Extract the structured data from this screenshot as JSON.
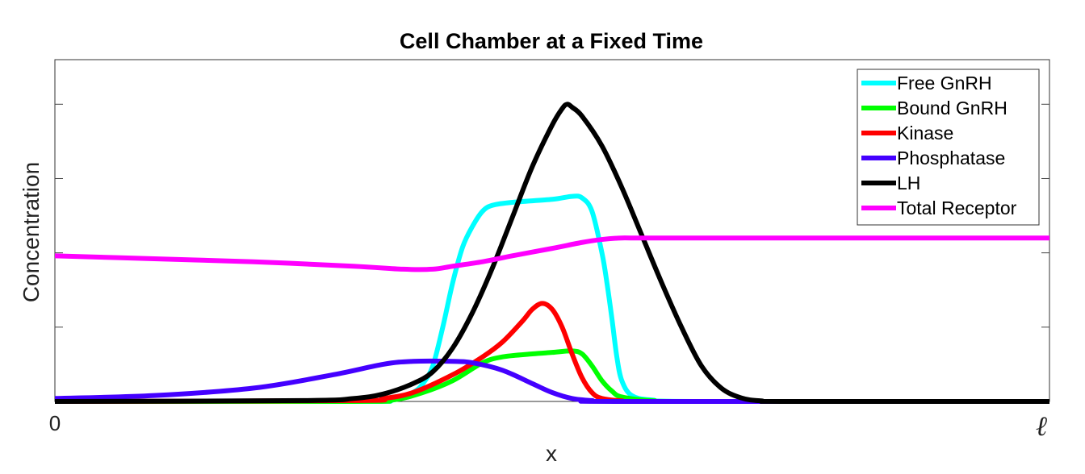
{
  "chart_data": {
    "type": "line",
    "title": "Cell Chamber at a Fixed Time",
    "xlabel": "x",
    "ylabel": "Concentration",
    "x_tick_labels": [
      "0",
      "ℓ"
    ],
    "xlim": [
      0,
      1
    ],
    "ylim": [
      0,
      1.15
    ],
    "y_tick_values": [
      0,
      0.25,
      0.5,
      0.75,
      1.0
    ],
    "grid": false,
    "legend_position": "top-right",
    "series": [
      {
        "name": "Free GnRH",
        "color": "#00ffff",
        "points": [
          [
            0,
            0
          ],
          [
            0.3,
            0
          ],
          [
            0.34,
            0.005
          ],
          [
            0.36,
            0.03
          ],
          [
            0.37,
            0.06
          ],
          [
            0.38,
            0.12
          ],
          [
            0.39,
            0.25
          ],
          [
            0.4,
            0.4
          ],
          [
            0.41,
            0.52
          ],
          [
            0.42,
            0.59
          ],
          [
            0.43,
            0.64
          ],
          [
            0.44,
            0.66
          ],
          [
            0.46,
            0.67
          ],
          [
            0.5,
            0.68
          ],
          [
            0.52,
            0.69
          ],
          [
            0.53,
            0.685
          ],
          [
            0.54,
            0.64
          ],
          [
            0.55,
            0.5
          ],
          [
            0.555,
            0.4
          ],
          [
            0.56,
            0.28
          ],
          [
            0.565,
            0.15
          ],
          [
            0.57,
            0.07
          ],
          [
            0.58,
            0.02
          ],
          [
            0.6,
            0.005
          ],
          [
            0.65,
            0
          ],
          [
            1,
            0
          ]
        ]
      },
      {
        "name": "Bound GnRH",
        "color": "#00ff00",
        "points": [
          [
            0,
            0
          ],
          [
            0.3,
            0
          ],
          [
            0.34,
            0.005
          ],
          [
            0.37,
            0.03
          ],
          [
            0.4,
            0.07
          ],
          [
            0.43,
            0.13
          ],
          [
            0.45,
            0.15
          ],
          [
            0.48,
            0.16
          ],
          [
            0.5,
            0.165
          ],
          [
            0.52,
            0.17
          ],
          [
            0.53,
            0.16
          ],
          [
            0.54,
            0.12
          ],
          [
            0.55,
            0.07
          ],
          [
            0.56,
            0.035
          ],
          [
            0.57,
            0.015
          ],
          [
            0.6,
            0.003
          ],
          [
            0.65,
            0
          ],
          [
            1,
            0
          ]
        ]
      },
      {
        "name": "Kinase",
        "color": "#ff0000",
        "points": [
          [
            0,
            0
          ],
          [
            0.3,
            0.003
          ],
          [
            0.33,
            0.01
          ],
          [
            0.36,
            0.03
          ],
          [
            0.4,
            0.09
          ],
          [
            0.43,
            0.15
          ],
          [
            0.45,
            0.2
          ],
          [
            0.47,
            0.27
          ],
          [
            0.48,
            0.31
          ],
          [
            0.49,
            0.33
          ],
          [
            0.5,
            0.31
          ],
          [
            0.51,
            0.25
          ],
          [
            0.52,
            0.16
          ],
          [
            0.53,
            0.08
          ],
          [
            0.54,
            0.03
          ],
          [
            0.55,
            0.01
          ],
          [
            0.57,
            0.002
          ],
          [
            0.6,
            0
          ],
          [
            1,
            0
          ]
        ]
      },
      {
        "name": "Phosphatase",
        "color": "#4400ff",
        "points": [
          [
            0,
            0.01
          ],
          [
            0.1,
            0.02
          ],
          [
            0.2,
            0.045
          ],
          [
            0.28,
            0.09
          ],
          [
            0.33,
            0.125
          ],
          [
            0.36,
            0.135
          ],
          [
            0.4,
            0.135
          ],
          [
            0.42,
            0.13
          ],
          [
            0.45,
            0.105
          ],
          [
            0.48,
            0.06
          ],
          [
            0.5,
            0.03
          ],
          [
            0.52,
            0.01
          ],
          [
            0.54,
            0.003
          ],
          [
            0.57,
            0
          ],
          [
            1,
            0
          ]
        ]
      },
      {
        "name": "LH",
        "color": "#000000",
        "points": [
          [
            0,
            0
          ],
          [
            0.25,
            0.003
          ],
          [
            0.3,
            0.01
          ],
          [
            0.33,
            0.025
          ],
          [
            0.36,
            0.06
          ],
          [
            0.38,
            0.1
          ],
          [
            0.4,
            0.18
          ],
          [
            0.42,
            0.3
          ],
          [
            0.44,
            0.45
          ],
          [
            0.46,
            0.62
          ],
          [
            0.48,
            0.79
          ],
          [
            0.5,
            0.93
          ],
          [
            0.51,
            0.985
          ],
          [
            0.515,
            1.0
          ],
          [
            0.52,
            0.99
          ],
          [
            0.53,
            0.96
          ],
          [
            0.55,
            0.86
          ],
          [
            0.57,
            0.72
          ],
          [
            0.59,
            0.56
          ],
          [
            0.61,
            0.4
          ],
          [
            0.63,
            0.25
          ],
          [
            0.65,
            0.12
          ],
          [
            0.67,
            0.045
          ],
          [
            0.69,
            0.012
          ],
          [
            0.71,
            0.002
          ],
          [
            0.74,
            0
          ],
          [
            1,
            0
          ]
        ]
      },
      {
        "name": "Total Receptor",
        "color": "#ff00ff",
        "points": [
          [
            0,
            0.49
          ],
          [
            0.1,
            0.48
          ],
          [
            0.2,
            0.47
          ],
          [
            0.3,
            0.455
          ],
          [
            0.35,
            0.445
          ],
          [
            0.38,
            0.445
          ],
          [
            0.4,
            0.455
          ],
          [
            0.43,
            0.47
          ],
          [
            0.46,
            0.49
          ],
          [
            0.5,
            0.515
          ],
          [
            0.53,
            0.535
          ],
          [
            0.55,
            0.545
          ],
          [
            0.57,
            0.55
          ],
          [
            0.6,
            0.55
          ],
          [
            0.8,
            0.55
          ],
          [
            1,
            0.55
          ]
        ]
      }
    ]
  }
}
